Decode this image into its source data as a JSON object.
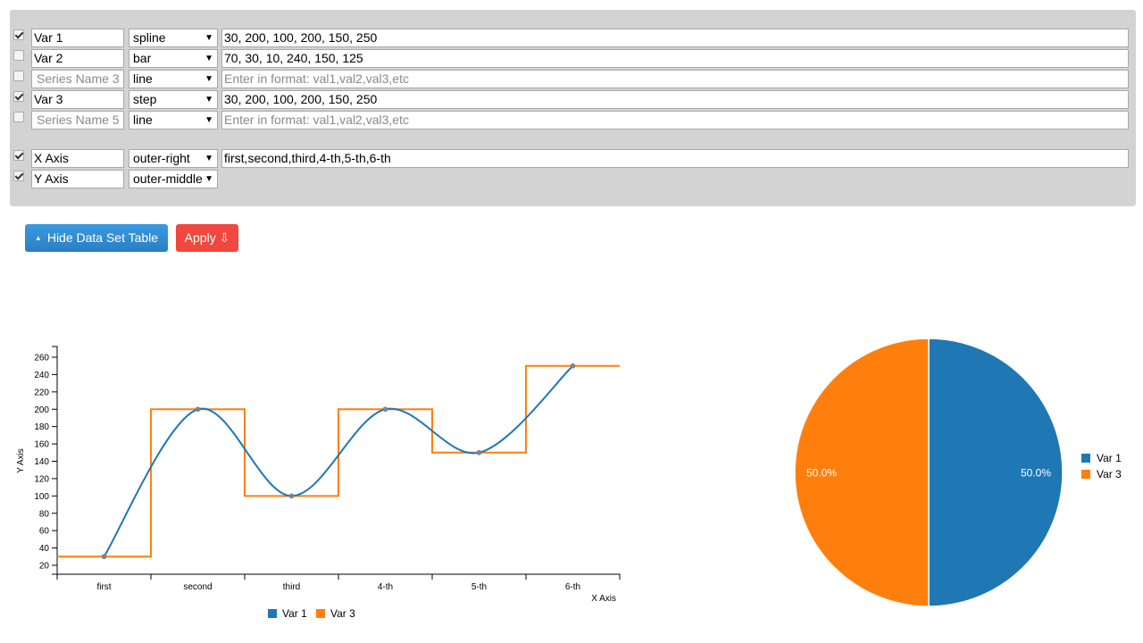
{
  "dataset_table": {
    "series": [
      {
        "checked": true,
        "name": "Var 1",
        "name_placeholder": "",
        "type": "spline",
        "values": "30, 200, 100, 200, 150, 250",
        "values_placeholder": ""
      },
      {
        "checked": false,
        "name": "Var 2",
        "name_placeholder": "",
        "type": "bar",
        "values": "70, 30, 10, 240, 150, 125",
        "values_placeholder": ""
      },
      {
        "checked": false,
        "name": "",
        "name_placeholder": "Series Name 3",
        "type": "line",
        "values": "",
        "values_placeholder": "Enter in format: val1,val2,val3,etc"
      },
      {
        "checked": true,
        "name": "Var 3",
        "name_placeholder": "",
        "type": "step",
        "values": "30, 200, 100, 200, 150, 250",
        "values_placeholder": ""
      },
      {
        "checked": false,
        "name": "",
        "name_placeholder": "Series Name 5",
        "type": "line",
        "values": "",
        "values_placeholder": "Enter in format: val1,val2,val3,etc"
      }
    ],
    "x_axis": {
      "checked": true,
      "name": "X Axis",
      "position": "outer-right",
      "categories": "first,second,third,4-th,5-th,6-th"
    },
    "y_axis": {
      "checked": true,
      "name": "Y Axis",
      "position": "outer-middle"
    }
  },
  "buttons": {
    "hide_label": "Hide Data Set Table",
    "hide_icon": "▲",
    "apply_label": "Apply ⇩"
  },
  "colors": {
    "var1": "#1f77b4",
    "var3": "#ff7f0e",
    "panel": "#d3d3d3",
    "hide_btn": "#2f8bd0",
    "apply_btn": "#f0483e"
  },
  "chart_data": [
    {
      "type": "line",
      "title": "",
      "xlabel": "X Axis",
      "ylabel": "Y Axis",
      "categories": [
        "first",
        "second",
        "third",
        "4-th",
        "5-th",
        "6-th"
      ],
      "series": [
        {
          "name": "Var 1",
          "render": "spline",
          "values": [
            30,
            200,
            100,
            200,
            150,
            250
          ]
        },
        {
          "name": "Var 3",
          "render": "step",
          "values": [
            30,
            200,
            100,
            200,
            150,
            250
          ]
        }
      ],
      "yticks": [
        20,
        40,
        60,
        80,
        100,
        120,
        140,
        160,
        180,
        200,
        220,
        240,
        260
      ],
      "ylim": [
        10,
        272
      ],
      "legend": [
        "Var 1",
        "Var 3"
      ],
      "legend_position": "bottom"
    },
    {
      "type": "pie",
      "title": "",
      "slices": [
        {
          "label": "Var 1",
          "value": 50.0,
          "text": "50.0%"
        },
        {
          "label": "Var 3",
          "value": 50.0,
          "text": "50.0%"
        }
      ],
      "legend": [
        "Var 1",
        "Var 3"
      ],
      "legend_position": "right"
    }
  ]
}
